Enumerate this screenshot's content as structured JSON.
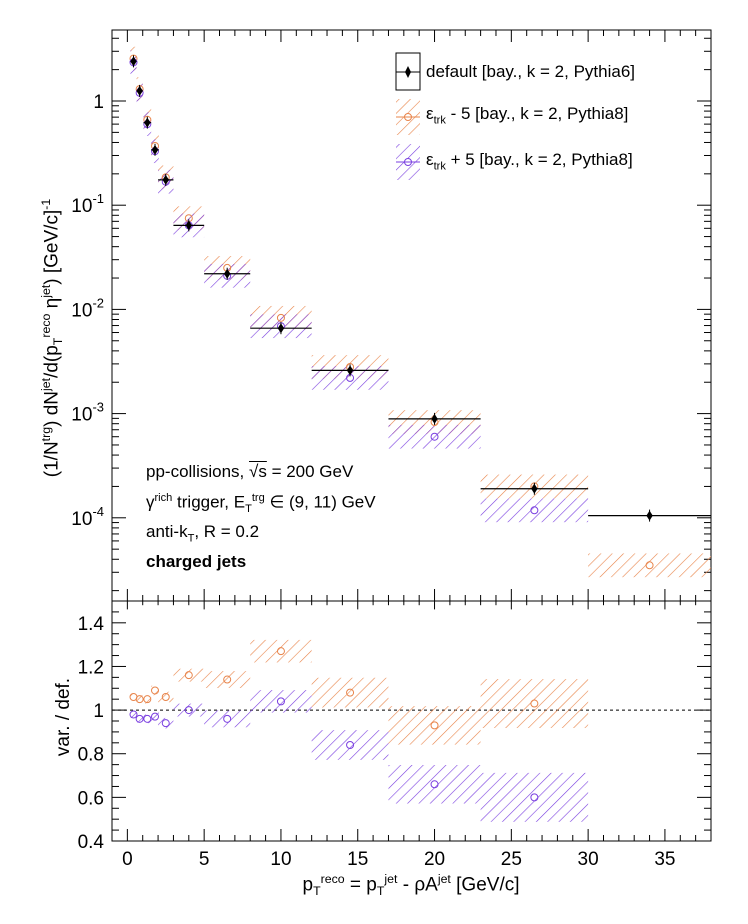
{
  "chart_data": [
    {
      "type": "scatter",
      "panel": "top",
      "yscale": "log",
      "xlim": [
        -1,
        38
      ],
      "ylim": [
        2e-05,
        4
      ],
      "ylabel": "(1/N^trg) dN^jet/d(p_T^reco η^jet) [GeV/c]^-1",
      "ytick_labels": [
        "1",
        "10^-1",
        "10^-2",
        "10^-3",
        "10^-4"
      ],
      "legend_position": "top-right",
      "series": [
        {
          "name": "default [bay., k = 2, Pythia6]",
          "color": "#000000",
          "x": [
            0.4,
            0.8,
            1.3,
            1.8,
            2.5,
            4.0,
            6.5,
            10.0,
            14.5,
            20.0,
            26.5,
            34.0
          ],
          "xerr": [
            0.2,
            0.2,
            0.25,
            0.25,
            0.5,
            1.0,
            1.5,
            2.0,
            2.5,
            3.0,
            3.5,
            4.0
          ],
          "y": [
            2.4,
            1.25,
            0.62,
            0.34,
            0.175,
            0.064,
            0.022,
            0.0066,
            0.0026,
            0.00089,
            0.00019,
            0.000105
          ]
        },
        {
          "name": "ε_trk - 5 [bay., k = 2, Pythia8]",
          "color": "#e8844a",
          "x": [
            0.4,
            0.8,
            1.3,
            1.8,
            2.5,
            4.0,
            6.5,
            10.0,
            14.5,
            20.0,
            26.5,
            34.0
          ],
          "y": [
            2.55,
            1.3,
            0.66,
            0.37,
            0.185,
            0.075,
            0.025,
            0.0083,
            0.0028,
            0.00083,
            0.0002,
            3.5e-05
          ]
        },
        {
          "name": "ε_trk + 5 [bay., k = 2, Pythia8]",
          "color": "#7a3fe0",
          "x": [
            0.4,
            0.8,
            1.3,
            1.8,
            2.5,
            4.0,
            6.5,
            10.0,
            14.5,
            20.0,
            26.5
          ],
          "y": [
            2.35,
            1.2,
            0.6,
            0.33,
            0.168,
            0.064,
            0.021,
            0.0069,
            0.0022,
            0.0006,
            0.000118
          ]
        }
      ]
    },
    {
      "type": "scatter",
      "panel": "bottom",
      "xlim": [
        -1,
        38
      ],
      "ylim": [
        0.4,
        1.5
      ],
      "xlabel": "p_T^reco = p_T^jet - ρA^jet [GeV/c]",
      "ylabel": "var. / def.",
      "xticks": [
        0,
        5,
        10,
        15,
        20,
        25,
        30,
        35
      ],
      "yticks": [
        0.4,
        0.6,
        0.8,
        1,
        1.2,
        1.4
      ],
      "reference_line": 1,
      "series": [
        {
          "name": "ε_trk - 5 [bay., k = 2, Pythia8]",
          "color": "#e8844a",
          "x": [
            0.4,
            0.8,
            1.3,
            1.8,
            2.5,
            4.0,
            6.5,
            10.0,
            14.5,
            20.0,
            26.5
          ],
          "y": [
            1.06,
            1.05,
            1.05,
            1.09,
            1.06,
            1.16,
            1.14,
            1.27,
            1.08,
            0.93,
            1.03
          ]
        },
        {
          "name": "ε_trk + 5 [bay., k = 2, Pythia8]",
          "color": "#7a3fe0",
          "x": [
            0.4,
            0.8,
            1.3,
            1.8,
            2.5,
            4.0,
            6.5,
            10.0,
            14.5,
            20.0,
            26.5
          ],
          "y": [
            0.98,
            0.96,
            0.96,
            0.97,
            0.94,
            1.0,
            0.96,
            1.04,
            0.84,
            0.66,
            0.6
          ]
        }
      ]
    }
  ],
  "legend": {
    "items": [
      {
        "label_main": "default [bay., k = 2, Pythia6]"
      },
      {
        "eps": "ε",
        "sub": "trk",
        "rest": " - 5 [bay., k = 2, Pythia8]"
      },
      {
        "eps": "ε",
        "sub": "trk",
        "rest": " + 5 [bay., k = 2, Pythia8]"
      }
    ]
  },
  "annotations": {
    "line1_a": "pp-collisions, ",
    "line1_sqrt": "√s",
    "line1_b": " = 200 GeV",
    "line2_gamma": "γ",
    "line2_rich": "rich",
    "line2_mid": " trigger, E",
    "line2_sub": "T",
    "line2_sup": "trg",
    "line2_tail": " ∈ (9, 11) GeV",
    "line3_a": "anti-k",
    "line3_sub": "T",
    "line3_b": ", R = 0.2",
    "line4": "charged jets"
  },
  "axis_text": {
    "top_y_a": "(1/N",
    "top_y_trg": "trg",
    "top_y_b": ") dN",
    "top_y_jet": "jet",
    "top_y_c": "/d(p",
    "top_y_T": "T",
    "top_y_reco": "reco",
    "top_y_d": " η",
    "top_y_jet2": "jet",
    "top_y_e": ") [GeV/c]",
    "top_y_m1": "-1",
    "ratio_y": "var. / def.",
    "x_a": "p",
    "x_T": "T",
    "x_reco": "reco",
    "x_b": " = p",
    "x_T2": "T",
    "x_jet": "jet",
    "x_c": " - ρA",
    "x_jet2": "jet",
    "x_d": " [GeV/c]"
  }
}
